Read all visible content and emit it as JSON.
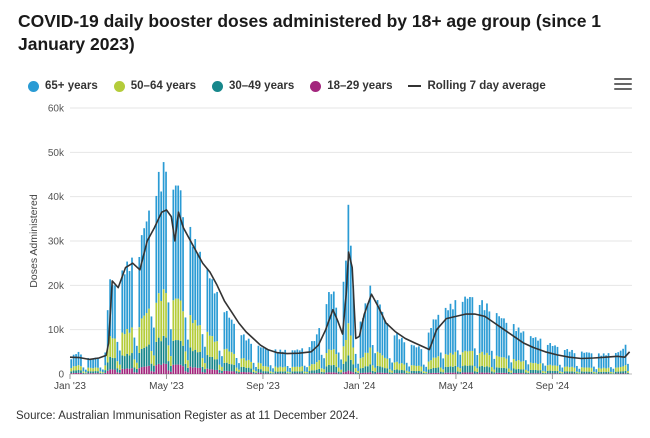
{
  "title": "COVID-19 daily booster doses administered by 18+ age group (since 1 January 2023)",
  "source": "Source: Australian Immunisation Register as at 11 December 2024.",
  "menu_icon": "hamburger-menu-icon",
  "legend": [
    {
      "label": "65+ years",
      "color": "#2a9bd4",
      "shape": "dot"
    },
    {
      "label": "50–64 years",
      "color": "#b4cc3a",
      "shape": "dot"
    },
    {
      "label": "30–49 years",
      "color": "#17878b",
      "shape": "dot"
    },
    {
      "label": "18–29 years",
      "color": "#a3267d",
      "shape": "dot"
    },
    {
      "label": "Rolling 7 day average",
      "color": "#333333",
      "shape": "line"
    }
  ],
  "chart_data": {
    "type": "bar",
    "stacked": true,
    "x_unit": "months since January 2023 (daily bars, sampled)",
    "x_ticks": [
      {
        "label": "Jan '23",
        "value": 0
      },
      {
        "label": "May '23",
        "value": 4
      },
      {
        "label": "Sep '23",
        "value": 8
      },
      {
        "label": "Jan '24",
        "value": 12
      },
      {
        "label": "May '24",
        "value": 16
      },
      {
        "label": "Sep '24",
        "value": 20
      }
    ],
    "xlim": [
      0,
      23.3
    ],
    "y_ticks": [
      "0",
      "10k",
      "20k",
      "30k",
      "40k",
      "50k",
      "60k"
    ],
    "ylim": [
      0,
      60000
    ],
    "ylabel": "Doses Administered",
    "grid": true,
    "legend_position": "top-left",
    "total_profile": [
      [
        0,
        3500
      ],
      [
        0.3,
        5200
      ],
      [
        0.6,
        4200
      ],
      [
        0.9,
        3400
      ],
      [
        1.2,
        4000
      ],
      [
        1.5,
        5000
      ],
      [
        1.6,
        22000
      ],
      [
        1.9,
        20500
      ],
      [
        2.2,
        24000
      ],
      [
        2.5,
        26500
      ],
      [
        2.8,
        25500
      ],
      [
        3.0,
        33000
      ],
      [
        3.3,
        38000
      ],
      [
        3.6,
        45000
      ],
      [
        3.8,
        46500
      ],
      [
        4.0,
        50000
      ],
      [
        4.2,
        42000
      ],
      [
        4.5,
        45000
      ],
      [
        4.7,
        38000
      ],
      [
        5.0,
        33000
      ],
      [
        5.4,
        28000
      ],
      [
        5.8,
        23000
      ],
      [
        6.2,
        17000
      ],
      [
        6.6,
        13500
      ],
      [
        7.0,
        10000
      ],
      [
        7.4,
        8000
      ],
      [
        7.8,
        6500
      ],
      [
        8.2,
        5800
      ],
      [
        8.6,
        5500
      ],
      [
        9.0,
        5500
      ],
      [
        9.4,
        5600
      ],
      [
        9.8,
        6000
      ],
      [
        10.2,
        8500
      ],
      [
        10.5,
        14000
      ],
      [
        10.8,
        20000
      ],
      [
        11.0,
        18000
      ],
      [
        11.2,
        12000
      ],
      [
        11.45,
        28000
      ],
      [
        11.55,
        40000
      ],
      [
        11.7,
        24000
      ],
      [
        11.9,
        9000
      ],
      [
        12.2,
        15000
      ],
      [
        12.5,
        21000
      ],
      [
        12.8,
        17000
      ],
      [
        13.1,
        12000
      ],
      [
        13.5,
        9500
      ],
      [
        13.9,
        7500
      ],
      [
        14.3,
        6500
      ],
      [
        14.7,
        6000
      ],
      [
        15.0,
        12000
      ],
      [
        15.4,
        14500
      ],
      [
        15.8,
        16000
      ],
      [
        16.2,
        17500
      ],
      [
        16.6,
        18000
      ],
      [
        17.0,
        17000
      ],
      [
        17.4,
        15500
      ],
      [
        17.8,
        13500
      ],
      [
        18.2,
        12000
      ],
      [
        18.6,
        10500
      ],
      [
        19.0,
        9000
      ],
      [
        19.5,
        8000
      ],
      [
        20.0,
        6800
      ],
      [
        20.5,
        5800
      ],
      [
        21.0,
        5200
      ],
      [
        21.5,
        5000
      ],
      [
        22.0,
        4600
      ],
      [
        22.5,
        4800
      ],
      [
        22.8,
        5200
      ],
      [
        23.0,
        6500
      ],
      [
        23.2,
        7500
      ]
    ],
    "rolling_avg": [
      [
        0,
        3800
      ],
      [
        0.4,
        3700
      ],
      [
        0.8,
        3300
      ],
      [
        1.2,
        3600
      ],
      [
        1.5,
        4200
      ],
      [
        1.6,
        7000
      ],
      [
        1.75,
        21000
      ],
      [
        2.0,
        19500
      ],
      [
        2.3,
        24000
      ],
      [
        2.6,
        25000
      ],
      [
        2.9,
        23500
      ],
      [
        3.2,
        30000
      ],
      [
        3.5,
        33000
      ],
      [
        3.8,
        36500
      ],
      [
        4.0,
        37000
      ],
      [
        4.2,
        35500
      ],
      [
        4.35,
        30000
      ],
      [
        4.5,
        36500
      ],
      [
        4.7,
        33000
      ],
      [
        4.9,
        31000
      ],
      [
        5.2,
        28000
      ],
      [
        5.5,
        25000
      ],
      [
        5.8,
        23000
      ],
      [
        6.1,
        20000
      ],
      [
        6.4,
        16500
      ],
      [
        6.7,
        14000
      ],
      [
        7.0,
        11500
      ],
      [
        7.3,
        9500
      ],
      [
        7.6,
        8000
      ],
      [
        7.9,
        6500
      ],
      [
        8.2,
        5500
      ],
      [
        8.6,
        4800
      ],
      [
        9.0,
        4600
      ],
      [
        9.5,
        4700
      ],
      [
        10.0,
        5000
      ],
      [
        10.3,
        6500
      ],
      [
        10.6,
        10000
      ],
      [
        10.9,
        14500
      ],
      [
        11.1,
        12000
      ],
      [
        11.3,
        9000
      ],
      [
        11.45,
        18000
      ],
      [
        11.55,
        27500
      ],
      [
        11.7,
        24000
      ],
      [
        11.85,
        8000
      ],
      [
        12.0,
        8500
      ],
      [
        12.2,
        13500
      ],
      [
        12.5,
        18000
      ],
      [
        12.8,
        15000
      ],
      [
        13.1,
        11500
      ],
      [
        13.5,
        9500
      ],
      [
        13.9,
        8000
      ],
      [
        14.3,
        7000
      ],
      [
        14.7,
        6000
      ],
      [
        14.9,
        5500
      ],
      [
        15.2,
        10000
      ],
      [
        15.6,
        12500
      ],
      [
        16.0,
        13000
      ],
      [
        16.4,
        13500
      ],
      [
        16.8,
        13500
      ],
      [
        17.2,
        13000
      ],
      [
        17.6,
        11500
      ],
      [
        18.0,
        10000
      ],
      [
        18.4,
        8500
      ],
      [
        18.8,
        7000
      ],
      [
        19.2,
        6000
      ],
      [
        19.7,
        5000
      ],
      [
        20.2,
        4300
      ],
      [
        20.7,
        3800
      ],
      [
        21.2,
        3500
      ],
      [
        21.7,
        3600
      ],
      [
        22.2,
        3800
      ],
      [
        22.7,
        4000
      ],
      [
        23.0,
        3800
      ],
      [
        23.2,
        5000
      ]
    ],
    "age_share": [
      {
        "name": "65+ years",
        "color": "#2a9bd4",
        "share": 0.6
      },
      {
        "name": "50–64 years",
        "color": "#b4cc3a",
        "share": 0.22
      },
      {
        "name": "30–49 years",
        "color": "#17878b",
        "share": 0.13
      },
      {
        "name": "18–29 years",
        "color": "#a3267d",
        "share": 0.05
      }
    ]
  }
}
